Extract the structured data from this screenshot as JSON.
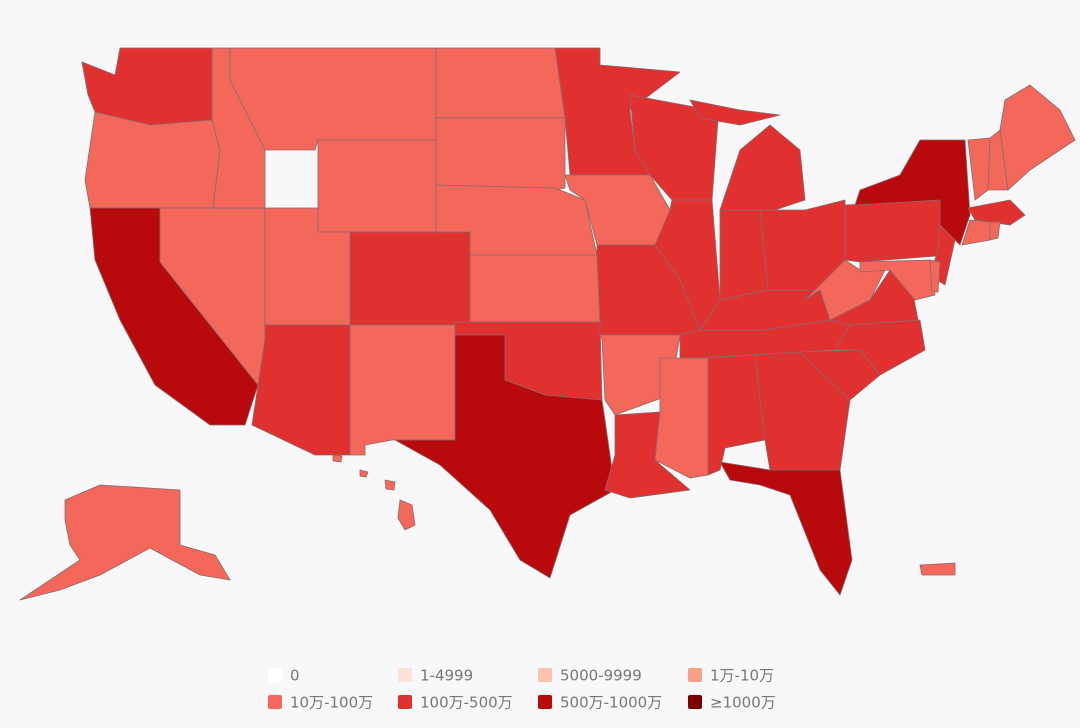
{
  "legend": {
    "items": [
      {
        "label": "0",
        "color": "#ffffff"
      },
      {
        "label": "1-4999",
        "color": "#fde1d8"
      },
      {
        "label": "5000-9999",
        "color": "#fbc2ad"
      },
      {
        "label": "1万-10万",
        "color": "#f9a184"
      },
      {
        "label": "10万-100万",
        "color": "#f3685a"
      },
      {
        "label": "100万-500万",
        "color": "#e03030"
      },
      {
        "label": "500万-1000万",
        "color": "#b80a0c"
      },
      {
        "label": "≥1000万",
        "color": "#7d0000"
      }
    ]
  }
}
